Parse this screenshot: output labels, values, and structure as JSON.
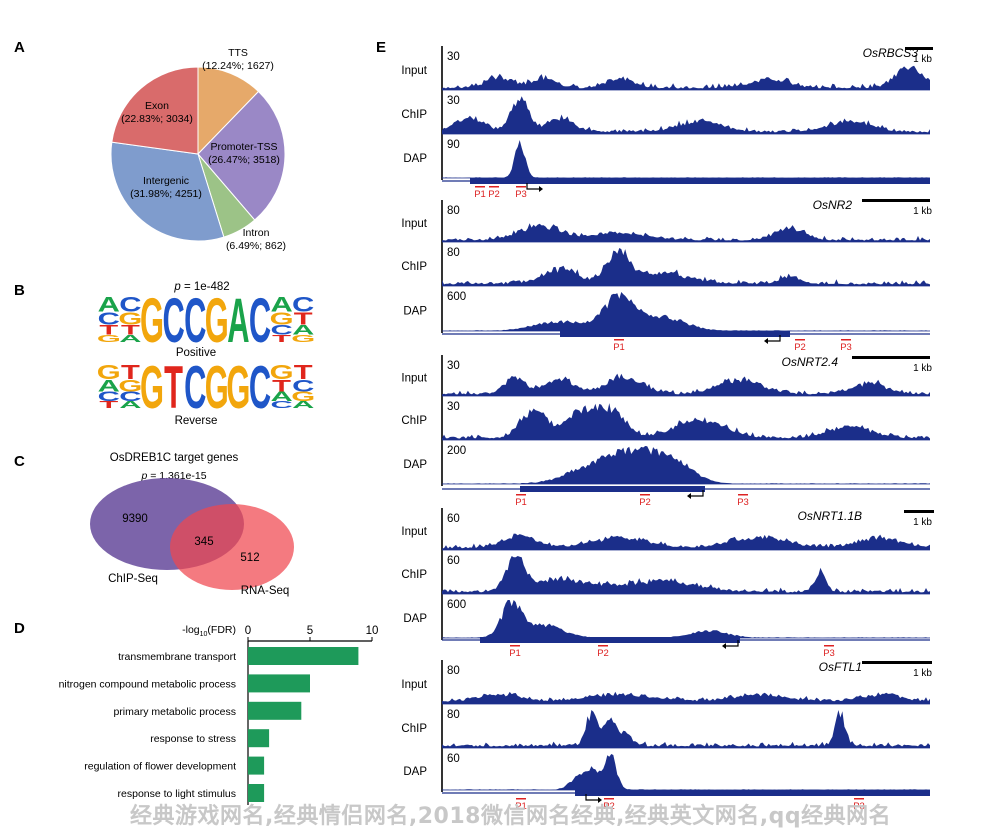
{
  "panels": {
    "a": "A",
    "b": "B",
    "c": "C",
    "d": "D",
    "e": "E"
  },
  "pie": {
    "slices": [
      {
        "name": "TTS",
        "detail": "(12.24%; 1627)",
        "value": 12.24,
        "color": "#E6A96A"
      },
      {
        "name": "Promoter-TSS",
        "detail": "(26.47%; 3518)",
        "value": 26.47,
        "color": "#9A88C6"
      },
      {
        "name": "Intron",
        "detail": "(6.49%; 862)",
        "value": 6.49,
        "color": "#9CC387"
      },
      {
        "name": "Intergenic",
        "detail": "(31.98%; 4251)",
        "value": 31.98,
        "color": "#7F9CCD"
      },
      {
        "name": "Exon",
        "detail": "(22.83%; 3034)",
        "value": 22.83,
        "color": "#D96B6B"
      }
    ]
  },
  "motif": {
    "pvalue": "= 1e-482",
    "p": "p",
    "positive": {
      "label": "Positive",
      "cols": [
        [
          "A",
          "C",
          "T",
          "G"
        ],
        [
          "C",
          "G",
          "T",
          "A"
        ],
        [
          "G"
        ],
        [
          "C"
        ],
        [
          "C"
        ],
        [
          "G"
        ],
        [
          "A"
        ],
        [
          "C"
        ],
        [
          "A",
          "G",
          "C",
          "T"
        ],
        [
          "C",
          "T",
          "A",
          "G"
        ]
      ]
    },
    "reverse": {
      "label": "Reverse",
      "cols": [
        [
          "G",
          "A",
          "C",
          "T"
        ],
        [
          "T",
          "G",
          "C",
          "A"
        ],
        [
          "G"
        ],
        [
          "T"
        ],
        [
          "C"
        ],
        [
          "G"
        ],
        [
          "G"
        ],
        [
          "C"
        ],
        [
          "G",
          "T",
          "A",
          "C"
        ],
        [
          "T",
          "C",
          "G",
          "A"
        ]
      ]
    }
  },
  "venn": {
    "title": "OsDREB1C target genes",
    "p": "p",
    "pvalue": "= 1.361e-15",
    "left_only": "9390",
    "overlap": "345",
    "right_only": "512",
    "left_label": "ChIP-Seq",
    "right_label": "RNA-Seq"
  },
  "chart_data": {
    "type": "bar",
    "orientation": "horizontal",
    "xlabel": "-log10(FDR)",
    "xlabel_main": "-log",
    "xlabel_sub": "10",
    "xlabel_tail": "(FDR)",
    "xlim": [
      0,
      10
    ],
    "xticks": [
      "0",
      "5",
      "10"
    ],
    "categories": [
      "transmembrane transport",
      "nitrogen compound metabolic process",
      "primary metabolic process",
      "response to stress",
      "regulation of flower development",
      "response to light stimulus"
    ],
    "values": [
      8.9,
      5.0,
      4.3,
      1.7,
      1.3,
      1.3
    ],
    "color": "#1E9A5A"
  },
  "tracks": {
    "gene_color": "#1B2E8A",
    "scale": "1 kb",
    "row_labels": [
      "Input",
      "ChIP",
      "DAP"
    ],
    "genes": [
      {
        "name": "OsRBCS3",
        "maxes": [
          "30",
          "30",
          "90"
        ],
        "primers": [
          "P1",
          "P2",
          "P3"
        ]
      },
      {
        "name": "OsNR2",
        "maxes": [
          "80",
          "80",
          "600"
        ],
        "primers": [
          "P1",
          "P2",
          "P3"
        ]
      },
      {
        "name": "OsNRT2.4",
        "maxes": [
          "30",
          "30",
          "200"
        ],
        "primers": [
          "P1",
          "P2",
          "P3"
        ]
      },
      {
        "name": "OsNRT1.1B",
        "maxes": [
          "60",
          "60",
          "600"
        ],
        "primers": [
          "P1",
          "P2",
          "P3"
        ]
      },
      {
        "name": "OsFTL1",
        "maxes": [
          "80",
          "80",
          "60"
        ],
        "primers": [
          "P1",
          "P2",
          "P3"
        ]
      }
    ]
  },
  "watermark": "经典游戏网名,经典情侣网名,2018微信网名经典,经典英文网名,qq经典网名"
}
